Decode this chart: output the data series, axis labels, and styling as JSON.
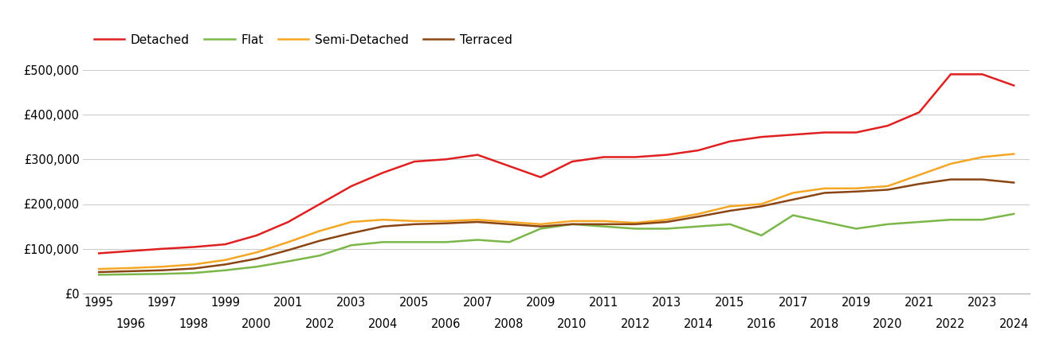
{
  "series": {
    "Detached": {
      "color": "#e02020",
      "years": [
        1995,
        1996,
        1997,
        1998,
        1999,
        2000,
        2001,
        2002,
        2003,
        2004,
        2005,
        2006,
        2007,
        2008,
        2009,
        2010,
        2011,
        2012,
        2013,
        2014,
        2015,
        2016,
        2017,
        2018,
        2019,
        2020,
        2021,
        2022,
        2023,
        2024
      ],
      "values": [
        90000,
        95000,
        100000,
        104000,
        110000,
        130000,
        160000,
        200000,
        240000,
        270000,
        295000,
        300000,
        310000,
        285000,
        260000,
        295000,
        305000,
        305000,
        310000,
        320000,
        340000,
        350000,
        355000,
        360000,
        360000,
        375000,
        405000,
        490000,
        490000,
        465000
      ]
    },
    "Flat": {
      "color": "#7ab648",
      "years": [
        1995,
        1996,
        1997,
        1998,
        1999,
        2000,
        2001,
        2002,
        2003,
        2004,
        2005,
        2006,
        2007,
        2008,
        2009,
        2010,
        2011,
        2012,
        2013,
        2014,
        2015,
        2016,
        2017,
        2018,
        2019,
        2020,
        2021,
        2022,
        2023,
        2024
      ],
      "values": [
        42000,
        43000,
        44000,
        46000,
        52000,
        60000,
        72000,
        85000,
        108000,
        115000,
        115000,
        115000,
        120000,
        115000,
        145000,
        155000,
        150000,
        145000,
        145000,
        150000,
        155000,
        130000,
        175000,
        160000,
        145000,
        155000,
        160000,
        165000,
        165000,
        178000
      ]
    },
    "Semi-Detached": {
      "color": "#f5a623",
      "years": [
        1995,
        1996,
        1997,
        1998,
        1999,
        2000,
        2001,
        2002,
        2003,
        2004,
        2005,
        2006,
        2007,
        2008,
        2009,
        2010,
        2011,
        2012,
        2013,
        2014,
        2015,
        2016,
        2017,
        2018,
        2019,
        2020,
        2021,
        2022,
        2023,
        2024
      ],
      "values": [
        55000,
        57000,
        60000,
        65000,
        75000,
        92000,
        115000,
        140000,
        160000,
        165000,
        162000,
        162000,
        165000,
        160000,
        155000,
        162000,
        162000,
        158000,
        165000,
        178000,
        195000,
        200000,
        225000,
        235000,
        235000,
        240000,
        265000,
        290000,
        305000,
        312000
      ]
    },
    "Terraced": {
      "color": "#8b4513",
      "years": [
        1995,
        1996,
        1997,
        1998,
        1999,
        2000,
        2001,
        2002,
        2003,
        2004,
        2005,
        2006,
        2007,
        2008,
        2009,
        2010,
        2011,
        2012,
        2013,
        2014,
        2015,
        2016,
        2017,
        2018,
        2019,
        2020,
        2021,
        2022,
        2023,
        2024
      ],
      "values": [
        48000,
        50000,
        52000,
        56000,
        65000,
        78000,
        97000,
        118000,
        135000,
        150000,
        155000,
        157000,
        160000,
        155000,
        150000,
        155000,
        155000,
        155000,
        160000,
        172000,
        185000,
        195000,
        210000,
        225000,
        228000,
        232000,
        245000,
        255000,
        255000,
        248000
      ]
    }
  },
  "xlim": [
    1994.5,
    2024.5
  ],
  "ylim": [
    0,
    560000
  ],
  "yticks": [
    0,
    100000,
    200000,
    300000,
    400000,
    500000
  ],
  "xticks_odd": [
    1995,
    1997,
    1999,
    2001,
    2003,
    2005,
    2007,
    2009,
    2011,
    2013,
    2015,
    2017,
    2019,
    2021,
    2023
  ],
  "xticks_even": [
    1996,
    1998,
    2000,
    2002,
    2004,
    2006,
    2008,
    2010,
    2012,
    2014,
    2016,
    2018,
    2020,
    2022,
    2024
  ],
  "background_color": "#ffffff",
  "grid_color": "#cccccc",
  "line_width": 1.8,
  "legend_fontsize": 11,
  "tick_fontsize": 10.5
}
